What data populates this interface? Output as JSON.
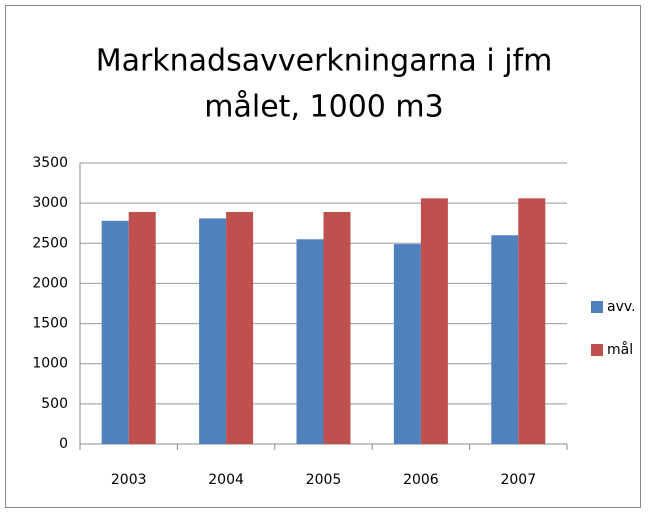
{
  "chart_data": {
    "type": "bar",
    "title": [
      "Marknadsavverkningarna i jfm",
      "målet, 1000 m3"
    ],
    "categories": [
      "2003",
      "2004",
      "2005",
      "2006",
      "2007"
    ],
    "series": [
      {
        "name": "avv.",
        "color": "#4f81bd",
        "values": [
          2780,
          2810,
          2550,
          2490,
          2600
        ]
      },
      {
        "name": "mål",
        "color": "#c0504d",
        "values": [
          2890,
          2890,
          2890,
          3060,
          3060
        ]
      }
    ],
    "ylim": [
      0,
      3500
    ],
    "yticks": [
      0,
      500,
      1000,
      1500,
      2000,
      2500,
      3000,
      3500
    ],
    "grid": true,
    "legend": "right"
  }
}
